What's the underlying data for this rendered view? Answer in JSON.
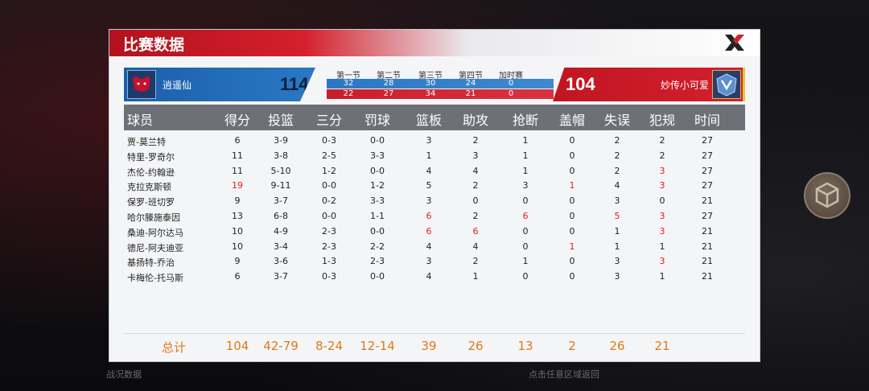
{
  "panel": {
    "title": "比赛数据"
  },
  "home": {
    "name": "逍遥仙",
    "score": "114",
    "quarters": [
      "32",
      "28",
      "30",
      "24",
      "0"
    ]
  },
  "away": {
    "name": "妙传小可爱",
    "score": "104",
    "quarters": [
      "22",
      "27",
      "34",
      "21",
      "0"
    ]
  },
  "quarter_labels": [
    "第一节",
    "第二节",
    "第三节",
    "第四节",
    "加时赛"
  ],
  "columns": [
    "球员",
    "得分",
    "投篮",
    "三分",
    "罚球",
    "篮板",
    "助攻",
    "抢断",
    "盖帽",
    "失误",
    "犯规",
    "时间"
  ],
  "players": [
    [
      "贾-莫兰特",
      "6",
      "3-9",
      "0-3",
      "0-0",
      "3",
      "2",
      "1",
      "0",
      "2",
      "2",
      "27"
    ],
    [
      "特里-罗奇尔",
      "11",
      "3-8",
      "2-5",
      "3-3",
      "1",
      "3",
      "1",
      "0",
      "2",
      "2",
      "27"
    ],
    [
      "杰伦-约翰逊",
      "11",
      "5-10",
      "1-2",
      "0-0",
      "4",
      "4",
      "1",
      "0",
      "2",
      "3",
      "27"
    ],
    [
      "克拉克斯顿",
      "19",
      "9-11",
      "0-0",
      "1-2",
      "5",
      "2",
      "3",
      "1",
      "4",
      "3",
      "27"
    ],
    [
      "保罗-班切罗",
      "9",
      "3-7",
      "0-2",
      "3-3",
      "3",
      "0",
      "0",
      "0",
      "3",
      "0",
      "21"
    ],
    [
      "哈尔滕施泰因",
      "13",
      "6-8",
      "0-0",
      "1-1",
      "6",
      "2",
      "6",
      "0",
      "5",
      "3",
      "27"
    ],
    [
      "桑迪-阿尔达马",
      "10",
      "4-9",
      "2-3",
      "0-0",
      "6",
      "6",
      "0",
      "0",
      "1",
      "3",
      "21"
    ],
    [
      "德尼-阿夫迪亚",
      "10",
      "3-4",
      "2-3",
      "2-2",
      "4",
      "4",
      "0",
      "1",
      "1",
      "1",
      "21"
    ],
    [
      "基扬特-乔治",
      "9",
      "3-6",
      "1-3",
      "2-3",
      "3",
      "2",
      "1",
      "0",
      "3",
      "3",
      "21"
    ],
    [
      "卡梅伦-托马斯",
      "6",
      "3-7",
      "0-3",
      "0-0",
      "4",
      "1",
      "0",
      "0",
      "3",
      "1",
      "21"
    ]
  ],
  "highlights": [
    [
      false,
      false,
      false,
      false,
      false,
      false,
      false,
      false,
      false,
      false,
      false,
      false
    ],
    [
      false,
      false,
      false,
      false,
      false,
      false,
      false,
      false,
      false,
      false,
      false,
      false
    ],
    [
      false,
      false,
      false,
      false,
      false,
      false,
      false,
      false,
      false,
      false,
      true,
      false
    ],
    [
      false,
      true,
      false,
      false,
      false,
      false,
      false,
      false,
      true,
      false,
      true,
      false
    ],
    [
      false,
      false,
      false,
      false,
      false,
      false,
      false,
      false,
      false,
      false,
      false,
      false
    ],
    [
      false,
      false,
      false,
      false,
      false,
      true,
      false,
      true,
      false,
      true,
      true,
      false
    ],
    [
      false,
      false,
      false,
      false,
      false,
      true,
      true,
      false,
      false,
      false,
      true,
      false
    ],
    [
      false,
      false,
      false,
      false,
      false,
      false,
      false,
      false,
      true,
      false,
      false,
      false
    ],
    [
      false,
      false,
      false,
      false,
      false,
      false,
      false,
      false,
      false,
      false,
      true,
      false
    ],
    [
      false,
      false,
      false,
      false,
      false,
      false,
      false,
      false,
      false,
      false,
      false,
      false
    ]
  ],
  "totals": [
    "总计",
    "104",
    "42-79",
    "8-24",
    "12-14",
    "39",
    "26",
    "13",
    "2",
    "26",
    "21",
    ""
  ],
  "footer": {
    "left": "战况数据",
    "right": "点击任意区域返回"
  },
  "colors": {
    "accent_red": "#d4202c",
    "home_blue": "#2a78c4",
    "total_orange": "#e07a16",
    "highlight_red": "#e01e1e"
  },
  "icons": {
    "close": "x-brand-icon",
    "home_logo": "bulls-logo",
    "away_logo": "mavericks-logo",
    "side_button": "cube-icon"
  }
}
